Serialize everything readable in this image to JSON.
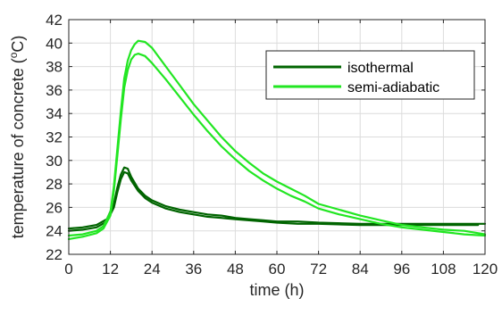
{
  "chart_data": {
    "type": "line",
    "title": "",
    "xlabel": "time (h)",
    "ylabel": "temperature of concrete (°C)",
    "ylabel_parts": {
      "pre": "temperature of concrete (",
      "sup": "o",
      "post": "C)"
    },
    "xlim": [
      0,
      120
    ],
    "ylim": [
      22,
      42
    ],
    "xticks": [
      0,
      12,
      24,
      36,
      48,
      60,
      72,
      84,
      96,
      108,
      120
    ],
    "yticks": [
      22,
      24,
      26,
      28,
      30,
      32,
      34,
      36,
      38,
      40,
      42
    ],
    "grid": true,
    "legend_position": "top-right",
    "legend": [
      {
        "name": "isothermal",
        "color": "#006400"
      },
      {
        "name": "semi-adiabatic",
        "color": "#22e622"
      }
    ],
    "series": [
      {
        "name": "isothermal",
        "color": "#006400",
        "x": [
          0,
          4,
          8,
          11,
          13,
          14,
          15,
          16,
          17,
          18,
          20,
          22,
          24,
          28,
          32,
          36,
          40,
          44,
          48,
          52,
          56,
          60,
          66,
          72,
          84,
          96,
          108,
          118
        ],
        "y": [
          24.0,
          24.1,
          24.3,
          24.8,
          26.0,
          27.3,
          28.4,
          29.0,
          28.9,
          28.3,
          27.4,
          26.8,
          26.4,
          25.9,
          25.6,
          25.4,
          25.2,
          25.1,
          25.0,
          24.9,
          24.8,
          24.7,
          24.6,
          24.6,
          24.5,
          24.5,
          24.5,
          24.5
        ]
      },
      {
        "name": "isothermal",
        "color": "#006400",
        "x": [
          0,
          4,
          8,
          11,
          13,
          14,
          15,
          16,
          17,
          18,
          20,
          22,
          24,
          28,
          32,
          36,
          40,
          44,
          48,
          52,
          56,
          60,
          66,
          72,
          84,
          96,
          108,
          120
        ],
        "y": [
          24.2,
          24.3,
          24.5,
          25.0,
          26.3,
          27.7,
          28.8,
          29.4,
          29.3,
          28.6,
          27.6,
          27.0,
          26.6,
          26.1,
          25.8,
          25.6,
          25.4,
          25.3,
          25.1,
          25.0,
          24.9,
          24.8,
          24.8,
          24.7,
          24.6,
          24.6,
          24.6,
          24.6
        ]
      },
      {
        "name": "semi-adiabatic",
        "color": "#22e622",
        "x": [
          0,
          4,
          8,
          10,
          12,
          13,
          14,
          15,
          16,
          17,
          18,
          19,
          20,
          22,
          24,
          28,
          32,
          36,
          40,
          44,
          48,
          52,
          56,
          60,
          64,
          68,
          72,
          78,
          84,
          90,
          96,
          102,
          108,
          114,
          120
        ],
        "y": [
          23.6,
          23.7,
          24.0,
          24.4,
          25.6,
          27.8,
          31.0,
          34.2,
          37.0,
          38.5,
          39.4,
          39.9,
          40.2,
          40.1,
          39.6,
          38.0,
          36.4,
          34.8,
          33.4,
          32.0,
          30.8,
          29.8,
          28.9,
          28.2,
          27.6,
          27.0,
          26.3,
          25.8,
          25.3,
          24.9,
          24.5,
          24.3,
          24.1,
          24.0,
          23.7
        ]
      },
      {
        "name": "semi-adiabatic",
        "color": "#22e622",
        "x": [
          0,
          4,
          8,
          10,
          12,
          13,
          14,
          15,
          16,
          17,
          18,
          19,
          20,
          22,
          24,
          28,
          32,
          36,
          40,
          44,
          48,
          52,
          56,
          60,
          64,
          68,
          72,
          78,
          84,
          90,
          96,
          102,
          108,
          114,
          120
        ],
        "y": [
          23.3,
          23.5,
          23.8,
          24.2,
          25.3,
          27.4,
          30.4,
          33.5,
          36.2,
          37.7,
          38.6,
          39.0,
          39.1,
          38.9,
          38.3,
          36.9,
          35.4,
          33.9,
          32.5,
          31.2,
          30.1,
          29.1,
          28.3,
          27.6,
          27.0,
          26.5,
          25.9,
          25.4,
          25.0,
          24.6,
          24.3,
          24.1,
          23.9,
          23.7,
          23.6
        ]
      }
    ]
  }
}
